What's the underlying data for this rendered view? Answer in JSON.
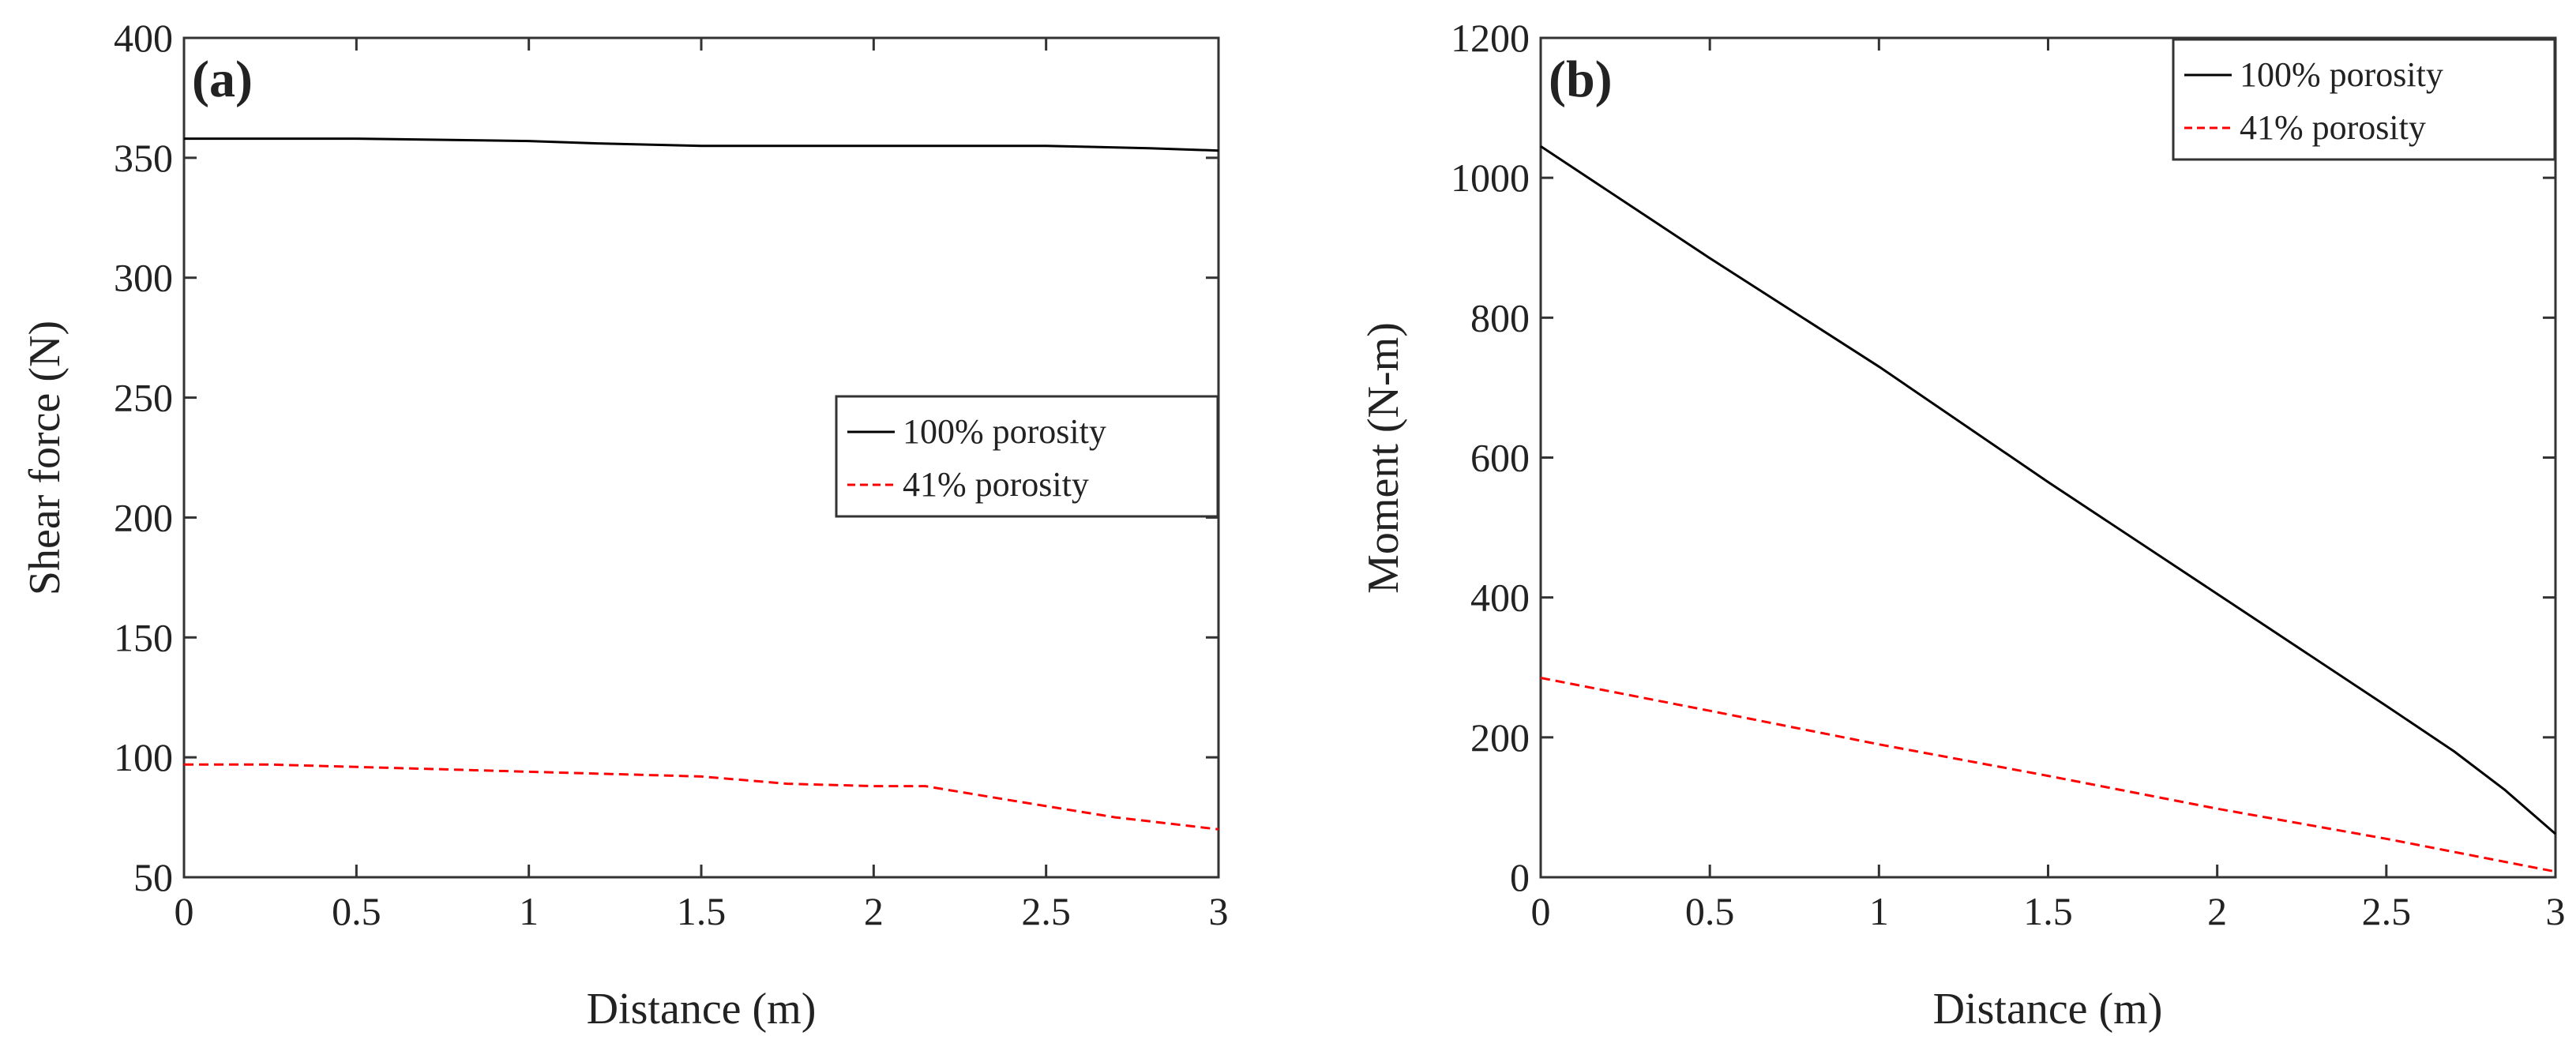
{
  "chart_data": [
    {
      "type": "line",
      "panel_label": "(a)",
      "xlabel": "Distance (m)",
      "ylabel": "Shear force (N)",
      "xlim": [
        0,
        3
      ],
      "ylim": [
        50,
        400
      ],
      "xticks": [
        "0",
        "0.5",
        "1",
        "1.5",
        "2",
        "2.5",
        "3"
      ],
      "yticks": [
        "50",
        "100",
        "150",
        "200",
        "250",
        "300",
        "350",
        "400"
      ],
      "grid": false,
      "legend": "center-right",
      "series": [
        {
          "name": "100% porosity",
          "style": "solid",
          "color": "#000000",
          "x": [
            0,
            0.5,
            1.0,
            1.2,
            1.5,
            2.0,
            2.5,
            2.8,
            3.0
          ],
          "y": [
            358,
            358,
            357,
            356,
            355,
            355,
            355,
            354,
            353
          ]
        },
        {
          "name": "41% porosity",
          "style": "dashed",
          "color": "#ff0000",
          "x": [
            0,
            0.25,
            0.5,
            0.75,
            1.0,
            1.25,
            1.5,
            1.75,
            2.0,
            2.15,
            2.4,
            2.7,
            3.0
          ],
          "y": [
            97,
            97,
            96,
            95,
            94,
            93,
            92,
            89,
            88,
            88,
            82,
            75,
            70
          ]
        }
      ]
    },
    {
      "type": "line",
      "panel_label": "(b)",
      "xlabel": "Distance (m)",
      "ylabel": "Moment (N-m)",
      "xlim": [
        0,
        3
      ],
      "ylim": [
        0,
        1200
      ],
      "xticks": [
        "0",
        "0.5",
        "1",
        "1.5",
        "2",
        "2.5",
        "3"
      ],
      "yticks": [
        "0",
        "200",
        "400",
        "600",
        "800",
        "1000",
        "1200"
      ],
      "grid": false,
      "legend": "top-right",
      "series": [
        {
          "name": "100% porosity",
          "style": "solid",
          "color": "#000000",
          "x": [
            0,
            0.5,
            1.0,
            1.5,
            2.0,
            2.5,
            2.7,
            2.85,
            3.0
          ],
          "y": [
            1045,
            885,
            730,
            565,
            405,
            245,
            180,
            125,
            62
          ]
        },
        {
          "name": "41% porosity",
          "style": "dashed",
          "color": "#ff0000",
          "x": [
            0,
            0.5,
            1.0,
            1.5,
            2.0,
            2.5,
            3.0
          ],
          "y": [
            285,
            238,
            190,
            145,
            98,
            55,
            8
          ]
        }
      ]
    }
  ]
}
